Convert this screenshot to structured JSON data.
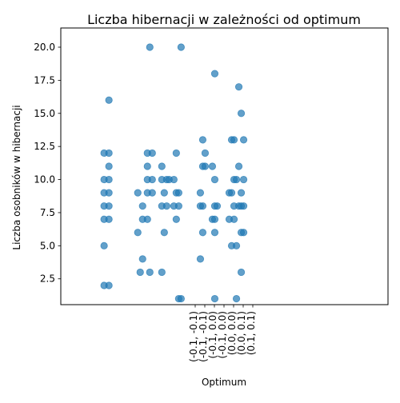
{
  "chart_data": {
    "type": "scatter",
    "title": "Liczba hibernacji w zależności od optimum",
    "xlabel": "Optimum",
    "ylabel": "Liczba osobników w hibernacji",
    "categories": [
      "(-0.1, -0.1)",
      "(-0.1, -0.1)",
      "(-0.1, 0.0)",
      "(0.0, 0.0)",
      "(0.0, 0.1)",
      "(0.1, 0.1)"
    ],
    "y_ticks": [
      2.5,
      5.0,
      7.5,
      10.0,
      12.5,
      15.0,
      17.5,
      20.0
    ],
    "ylim": [
      0.55,
      21.45
    ],
    "xlim": [
      -0.9,
      5.9
    ],
    "grid": false,
    "marker_color": "#1f77b4",
    "marker_alpha": 0.7,
    "points": [
      {
        "x": 0.0,
        "y": 2
      },
      {
        "x": 0.1,
        "y": 2
      },
      {
        "x": 0.0,
        "y": 5
      },
      {
        "x": 0.1,
        "y": 16
      },
      {
        "x": 0.0,
        "y": 7
      },
      {
        "x": 0.1,
        "y": 7
      },
      {
        "x": 0.0,
        "y": 8
      },
      {
        "x": 0.1,
        "y": 8
      },
      {
        "x": 0.0,
        "y": 9
      },
      {
        "x": 0.1,
        "y": 9
      },
      {
        "x": 0.0,
        "y": 10
      },
      {
        "x": 0.1,
        "y": 10
      },
      {
        "x": 0.1,
        "y": 11
      },
      {
        "x": 0.0,
        "y": 12
      },
      {
        "x": 0.1,
        "y": 12
      },
      {
        "x": 0.75,
        "y": 3
      },
      {
        "x": 0.95,
        "y": 3
      },
      {
        "x": 0.8,
        "y": 4
      },
      {
        "x": 0.7,
        "y": 6
      },
      {
        "x": 0.8,
        "y": 7
      },
      {
        "x": 0.9,
        "y": 7
      },
      {
        "x": 0.8,
        "y": 8
      },
      {
        "x": 0.7,
        "y": 9
      },
      {
        "x": 0.9,
        "y": 9
      },
      {
        "x": 1.0,
        "y": 9
      },
      {
        "x": 0.9,
        "y": 10
      },
      {
        "x": 1.0,
        "y": 10
      },
      {
        "x": 0.9,
        "y": 11
      },
      {
        "x": 0.9,
        "y": 12
      },
      {
        "x": 1.0,
        "y": 12
      },
      {
        "x": 0.95,
        "y": 20
      },
      {
        "x": 1.2,
        "y": 3
      },
      {
        "x": 1.25,
        "y": 6
      },
      {
        "x": 1.2,
        "y": 8
      },
      {
        "x": 1.3,
        "y": 8
      },
      {
        "x": 1.25,
        "y": 9
      },
      {
        "x": 1.2,
        "y": 10
      },
      {
        "x": 1.35,
        "y": 10
      },
      {
        "x": 1.3,
        "y": 10
      },
      {
        "x": 1.2,
        "y": 11
      },
      {
        "x": 1.55,
        "y": 1
      },
      {
        "x": 1.6,
        "y": 1
      },
      {
        "x": 1.5,
        "y": 7
      },
      {
        "x": 1.45,
        "y": 8
      },
      {
        "x": 1.55,
        "y": 8
      },
      {
        "x": 1.5,
        "y": 9
      },
      {
        "x": 1.55,
        "y": 9
      },
      {
        "x": 1.45,
        "y": 10
      },
      {
        "x": 1.5,
        "y": 12
      },
      {
        "x": 1.6,
        "y": 20
      },
      {
        "x": 2.0,
        "y": 4
      },
      {
        "x": 2.05,
        "y": 6
      },
      {
        "x": 2.0,
        "y": 8
      },
      {
        "x": 2.05,
        "y": 8
      },
      {
        "x": 2.0,
        "y": 9
      },
      {
        "x": 2.05,
        "y": 11
      },
      {
        "x": 2.1,
        "y": 11
      },
      {
        "x": 2.1,
        "y": 12
      },
      {
        "x": 2.05,
        "y": 13
      },
      {
        "x": 2.3,
        "y": 1
      },
      {
        "x": 2.3,
        "y": 6
      },
      {
        "x": 2.25,
        "y": 7
      },
      {
        "x": 2.3,
        "y": 7
      },
      {
        "x": 2.3,
        "y": 8
      },
      {
        "x": 2.35,
        "y": 8
      },
      {
        "x": 2.3,
        "y": 10
      },
      {
        "x": 2.25,
        "y": 11
      },
      {
        "x": 2.3,
        "y": 18
      },
      {
        "x": 2.65,
        "y": 5
      },
      {
        "x": 2.75,
        "y": 5
      },
      {
        "x": 2.6,
        "y": 7
      },
      {
        "x": 2.7,
        "y": 7
      },
      {
        "x": 2.7,
        "y": 8
      },
      {
        "x": 2.8,
        "y": 8
      },
      {
        "x": 2.6,
        "y": 9
      },
      {
        "x": 2.65,
        "y": 9
      },
      {
        "x": 2.7,
        "y": 10
      },
      {
        "x": 2.75,
        "y": 10
      },
      {
        "x": 2.65,
        "y": 13
      },
      {
        "x": 2.7,
        "y": 13
      },
      {
        "x": 2.75,
        "y": 1
      },
      {
        "x": 2.8,
        "y": 11
      },
      {
        "x": 2.8,
        "y": 17
      },
      {
        "x": 2.85,
        "y": 3
      },
      {
        "x": 2.9,
        "y": 6
      },
      {
        "x": 2.85,
        "y": 6
      },
      {
        "x": 2.85,
        "y": 8
      },
      {
        "x": 2.9,
        "y": 8
      },
      {
        "x": 2.85,
        "y": 9
      },
      {
        "x": 2.9,
        "y": 10
      },
      {
        "x": 2.9,
        "y": 13
      },
      {
        "x": 2.85,
        "y": 15
      }
    ]
  }
}
